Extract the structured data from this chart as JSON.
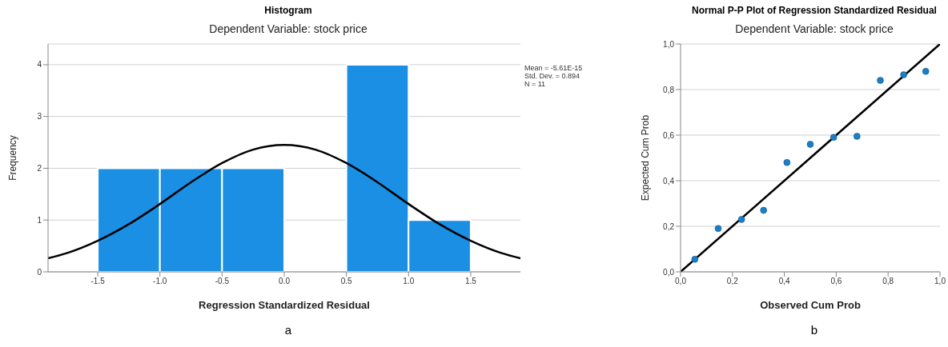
{
  "chart_data": [
    {
      "type": "histogram",
      "title": "Histogram",
      "subtitle": "Dependent Variable: stock price",
      "xlabel": "Regression Standardized Residual",
      "ylabel": "Frequency",
      "bins": [
        -1.5,
        -1.0,
        -0.5,
        0.0,
        0.5,
        1.0,
        1.5
      ],
      "values": [
        2,
        2,
        2,
        0,
        4,
        1
      ],
      "color": "#1a8fe3",
      "series": [
        {
          "type": "line",
          "color": "#000000",
          "x": [
            -1.9,
            -1.75,
            -1.5,
            -1.25,
            -1.0,
            -0.75,
            -0.5,
            -0.25,
            0.0,
            0.25,
            0.5,
            0.75,
            1.0,
            1.25,
            1.5,
            1.75,
            1.9
          ],
          "values": [
            0.26,
            0.36,
            0.6,
            0.92,
            1.31,
            1.73,
            2.1,
            2.36,
            2.45,
            2.36,
            2.1,
            1.73,
            1.31,
            0.92,
            0.6,
            0.36,
            0.26
          ]
        }
      ],
      "xlim": [
        -1.9,
        1.9
      ],
      "xticks": [
        {
          "value": -1.5,
          "label": "-1.5"
        },
        {
          "value": -1.0,
          "label": "-1.0"
        },
        {
          "value": -0.5,
          "label": "-0.5"
        },
        {
          "value": 0.0,
          "label": "0.0"
        },
        {
          "value": 0.5,
          "label": "0.5"
        },
        {
          "value": 1.0,
          "label": "1.0"
        },
        {
          "value": 1.5,
          "label": "1.5"
        }
      ],
      "ylim": [
        0,
        4.4
      ],
      "yticks": [
        0,
        1,
        2,
        3,
        4
      ],
      "grid": "y",
      "annotations": [
        "Mean = -5.61E-15",
        "Std. Dev. = 0.894",
        "N = 11",
        "a"
      ]
    },
    {
      "type": "scatter",
      "title": "Normal P-P Plot of Regression Standardized Residual",
      "subtitle": "Dependent Variable: stock price",
      "xlabel": "Observed Cum Prob",
      "ylabel": "Expected Cum Prob",
      "series": [
        {
          "type": "scatter",
          "marker": "circle",
          "color": "#1a7fc8",
          "x": [
            0.055,
            0.145,
            0.235,
            0.32,
            0.41,
            0.5,
            0.59,
            0.68,
            0.77,
            0.86,
            0.945
          ],
          "values": [
            0.055,
            0.19,
            0.23,
            0.27,
            0.48,
            0.56,
            0.59,
            0.595,
            0.84,
            0.865,
            0.88
          ]
        },
        {
          "type": "line",
          "color": "#000000",
          "x": [
            0,
            1
          ],
          "values": [
            0,
            1
          ]
        }
      ],
      "xlim": [
        0,
        1
      ],
      "xticks": [
        {
          "value": 0,
          "label": "0,0"
        },
        {
          "value": 0.2,
          "label": "0,2"
        },
        {
          "value": 0.4,
          "label": "0,4"
        },
        {
          "value": 0.6,
          "label": "0,6"
        },
        {
          "value": 0.8,
          "label": "0,8"
        },
        {
          "value": 1,
          "label": "1,0"
        }
      ],
      "ylim": [
        0,
        1
      ],
      "yticks": [
        {
          "value": 0,
          "label": "0,0"
        },
        {
          "value": 0.2,
          "label": "0,2"
        },
        {
          "value": 0.4,
          "label": "0,4"
        },
        {
          "value": 0.6,
          "label": "0,6"
        },
        {
          "value": 0.8,
          "label": "0,8"
        },
        {
          "value": 1,
          "label": "1,0"
        }
      ],
      "grid": "y",
      "annotations": [
        "b"
      ]
    }
  ]
}
